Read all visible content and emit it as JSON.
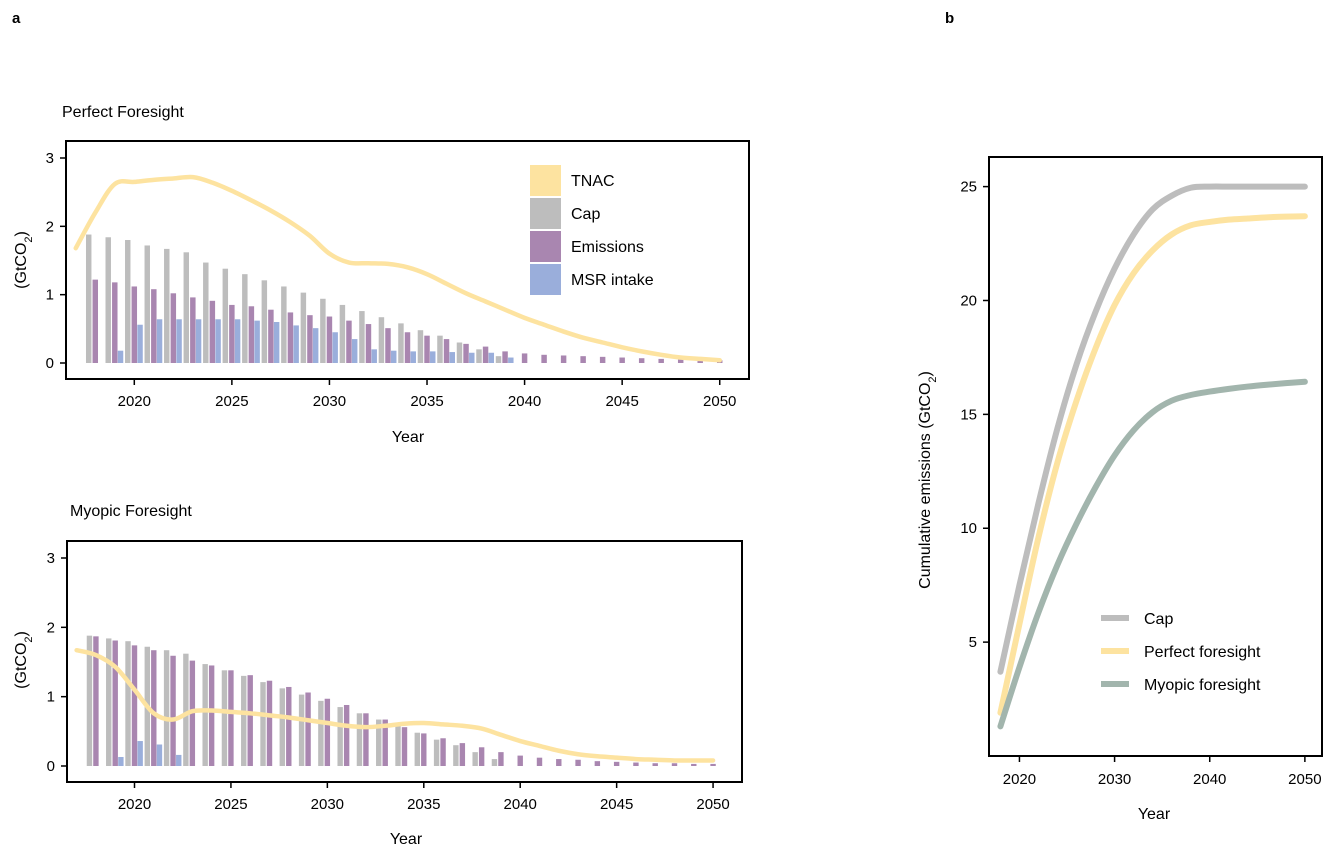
{
  "panels": {
    "a": "a",
    "b": "b"
  },
  "chart_data": [
    {
      "type": "bar",
      "title": "Perfect Foresight",
      "xlabel": "Year",
      "ylabel": "(GtCO2)",
      "xlim": [
        2016.5,
        2051.5
      ],
      "ylim": [
        0,
        3
      ],
      "xticks": [
        2020,
        2025,
        2030,
        2035,
        2040,
        2045,
        2050
      ],
      "yticks": [
        0,
        1,
        2,
        3
      ],
      "legend": {
        "position": "top-right"
      },
      "years": [
        2018,
        2019,
        2020,
        2021,
        2022,
        2023,
        2024,
        2025,
        2026,
        2027,
        2028,
        2029,
        2030,
        2031,
        2032,
        2033,
        2034,
        2035,
        2036,
        2037,
        2038,
        2039,
        2040,
        2041,
        2042,
        2043,
        2044,
        2045,
        2046,
        2047,
        2048,
        2049,
        2050
      ],
      "series": [
        {
          "name": "Cap",
          "color": "#bdbdbd",
          "kind": "bar",
          "values": [
            1.88,
            1.84,
            1.8,
            1.72,
            1.67,
            1.62,
            1.47,
            1.38,
            1.3,
            1.21,
            1.12,
            1.03,
            0.94,
            0.85,
            0.76,
            0.67,
            0.58,
            0.48,
            0.4,
            0.3,
            0.2,
            0.1,
            0,
            0,
            0,
            0,
            0,
            0,
            0,
            0,
            0,
            0,
            0
          ]
        },
        {
          "name": "Emissions",
          "color": "#a986b0",
          "kind": "bar",
          "values": [
            1.22,
            1.18,
            1.12,
            1.08,
            1.02,
            0.96,
            0.91,
            0.85,
            0.83,
            0.78,
            0.74,
            0.7,
            0.68,
            0.62,
            0.57,
            0.51,
            0.45,
            0.4,
            0.35,
            0.28,
            0.24,
            0.17,
            0.14,
            0.12,
            0.11,
            0.1,
            0.09,
            0.08,
            0.07,
            0.06,
            0.05,
            0.04,
            0.04
          ]
        },
        {
          "name": "MSR intake",
          "color": "#9aaedb",
          "kind": "bar",
          "values": [
            0,
            0.18,
            0.56,
            0.64,
            0.64,
            0.64,
            0.64,
            0.64,
            0.62,
            0.6,
            0.55,
            0.51,
            0.45,
            0.35,
            0.2,
            0.18,
            0.17,
            0.17,
            0.16,
            0.15,
            0.15,
            0.08,
            0,
            0,
            0,
            0,
            0,
            0,
            0,
            0,
            0,
            0,
            0
          ]
        },
        {
          "name": "TNAC",
          "color": "#fde3a0",
          "kind": "line",
          "x": [
            2017,
            2018,
            2019,
            2020,
            2021,
            2022,
            2023,
            2024,
            2025,
            2026,
            2027,
            2028,
            2029,
            2030,
            2031,
            2032,
            2033,
            2034,
            2035,
            2036,
            2037,
            2038,
            2039,
            2040,
            2041,
            2042,
            2043,
            2044,
            2045,
            2046,
            2047,
            2048,
            2049,
            2050
          ],
          "values": [
            1.68,
            2.2,
            2.62,
            2.65,
            2.68,
            2.7,
            2.72,
            2.64,
            2.52,
            2.38,
            2.23,
            2.06,
            1.86,
            1.6,
            1.47,
            1.46,
            1.45,
            1.4,
            1.3,
            1.16,
            1.02,
            0.9,
            0.78,
            0.66,
            0.56,
            0.46,
            0.37,
            0.3,
            0.23,
            0.17,
            0.12,
            0.08,
            0.06,
            0.04
          ]
        }
      ]
    },
    {
      "type": "bar",
      "title": "Myopic Foresight",
      "xlabel": "Year",
      "ylabel": "(GtCO2)",
      "xlim": [
        2016.5,
        2051.5
      ],
      "ylim": [
        0,
        3
      ],
      "xticks": [
        2020,
        2025,
        2030,
        2035,
        2040,
        2045,
        2050
      ],
      "yticks": [
        0,
        1,
        2,
        3
      ],
      "years": [
        2018,
        2019,
        2020,
        2021,
        2022,
        2023,
        2024,
        2025,
        2026,
        2027,
        2028,
        2029,
        2030,
        2031,
        2032,
        2033,
        2034,
        2035,
        2036,
        2037,
        2038,
        2039,
        2040,
        2041,
        2042,
        2043,
        2044,
        2045,
        2046,
        2047,
        2048,
        2049,
        2050
      ],
      "series": [
        {
          "name": "Cap",
          "color": "#bdbdbd",
          "kind": "bar",
          "values": [
            1.88,
            1.84,
            1.8,
            1.72,
            1.67,
            1.62,
            1.47,
            1.38,
            1.3,
            1.21,
            1.12,
            1.03,
            0.94,
            0.85,
            0.76,
            0.67,
            0.58,
            0.48,
            0.38,
            0.3,
            0.2,
            0.1,
            0,
            0,
            0,
            0,
            0,
            0,
            0,
            0,
            0,
            0,
            0
          ]
        },
        {
          "name": "Emissions",
          "color": "#a986b0",
          "kind": "bar",
          "values": [
            1.87,
            1.81,
            1.74,
            1.67,
            1.59,
            1.52,
            1.45,
            1.38,
            1.31,
            1.23,
            1.14,
            1.06,
            0.97,
            0.88,
            0.76,
            0.67,
            0.56,
            0.47,
            0.4,
            0.33,
            0.27,
            0.2,
            0.15,
            0.12,
            0.1,
            0.09,
            0.07,
            0.06,
            0.05,
            0.04,
            0.04,
            0.03,
            0.03
          ]
        },
        {
          "name": "MSR intake",
          "color": "#9aaedb",
          "kind": "bar",
          "values": [
            0,
            0.13,
            0.36,
            0.31,
            0.16,
            0,
            0,
            0,
            0,
            0,
            0,
            0,
            0,
            0,
            0,
            0,
            0,
            0,
            0,
            0,
            0,
            0,
            0,
            0,
            0,
            0,
            0,
            0,
            0,
            0,
            0,
            0,
            0
          ]
        },
        {
          "name": "TNAC",
          "color": "#fde3a0",
          "kind": "line",
          "x": [
            2017,
            2018,
            2019,
            2020,
            2021,
            2022,
            2023,
            2024,
            2025,
            2026,
            2027,
            2028,
            2029,
            2030,
            2031,
            2032,
            2033,
            2034,
            2035,
            2036,
            2037,
            2038,
            2039,
            2040,
            2041,
            2042,
            2043,
            2044,
            2045,
            2046,
            2047,
            2048,
            2049,
            2050
          ],
          "values": [
            1.67,
            1.6,
            1.43,
            1.1,
            0.76,
            0.67,
            0.79,
            0.8,
            0.78,
            0.76,
            0.73,
            0.7,
            0.66,
            0.62,
            0.58,
            0.56,
            0.58,
            0.61,
            0.62,
            0.6,
            0.58,
            0.54,
            0.45,
            0.36,
            0.29,
            0.22,
            0.17,
            0.14,
            0.12,
            0.1,
            0.09,
            0.08,
            0.08,
            0.08
          ]
        }
      ]
    },
    {
      "type": "line",
      "xlabel": "Year",
      "ylabel": "Cumulative emissions (GtCO2)",
      "xlim": [
        2016.8,
        2051.8
      ],
      "ylim": [
        0,
        26.3
      ],
      "xticks": [
        2020,
        2030,
        2040,
        2050
      ],
      "yticks": [
        5,
        10,
        15,
        20,
        25
      ],
      "legend": {
        "position": "bottom-center"
      },
      "x": [
        2018,
        2020,
        2022,
        2024,
        2026,
        2028,
        2030,
        2032,
        2034,
        2036,
        2038,
        2040,
        2042,
        2044,
        2046,
        2048,
        2050
      ],
      "series": [
        {
          "name": "Cap",
          "color": "#bdbdbd",
          "values": [
            3.7,
            7.5,
            11.1,
            14.4,
            17.2,
            19.5,
            21.4,
            22.9,
            24.0,
            24.6,
            24.95,
            25.0,
            25.0,
            25.0,
            25.0,
            25.0,
            25.0
          ]
        },
        {
          "name": "Perfect foresight",
          "color": "#fde3a0",
          "values": [
            1.9,
            5.8,
            9.6,
            12.9,
            15.6,
            17.9,
            19.8,
            21.2,
            22.2,
            22.9,
            23.3,
            23.45,
            23.55,
            23.6,
            23.65,
            23.68,
            23.7
          ]
        },
        {
          "name": "Myopic foresight",
          "color": "#a2b5ad",
          "values": [
            1.3,
            3.9,
            6.3,
            8.4,
            10.2,
            11.8,
            13.2,
            14.3,
            15.1,
            15.6,
            15.85,
            16.0,
            16.12,
            16.22,
            16.3,
            16.37,
            16.43
          ]
        }
      ]
    }
  ]
}
